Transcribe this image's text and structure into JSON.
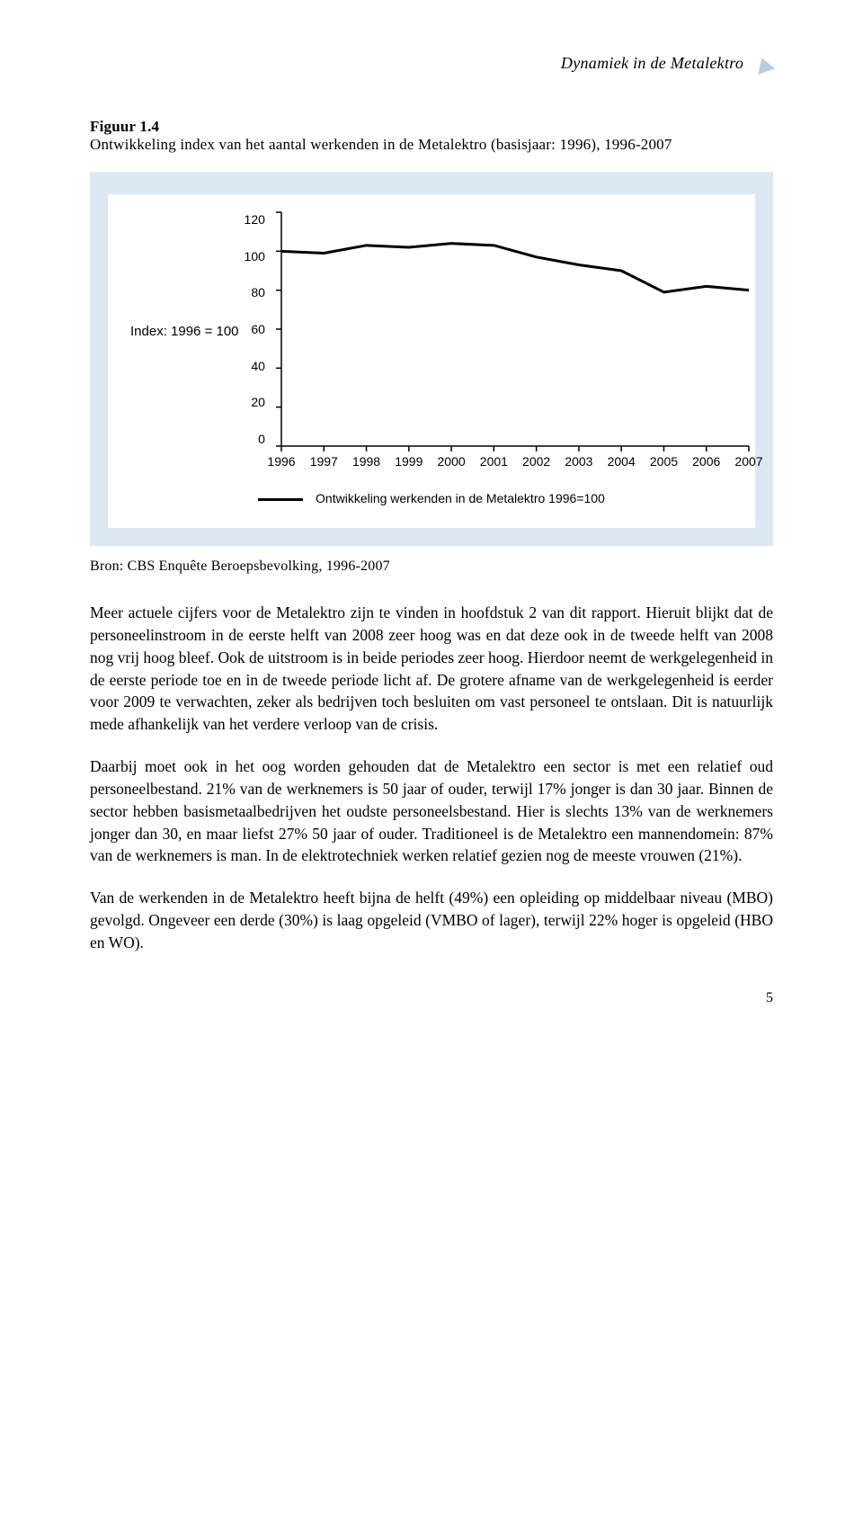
{
  "header": {
    "running_title": "Dynamiek in de Metalektro"
  },
  "figure": {
    "label": "Figuur 1.4",
    "caption": "Ontwikkeling index van het aantal werkenden in de Metalektro (basisjaar: 1996), 1996-2007"
  },
  "chart": {
    "type": "line",
    "background_color": "#dde8f2",
    "plot_background": "#ffffff",
    "line_color": "#000000",
    "line_width": 3,
    "axis_color": "#000000",
    "ylabel": "Index: 1996 = 100",
    "ylim": [
      0,
      120
    ],
    "ytick_step": 20,
    "yticks": [
      "120",
      "100",
      "80",
      "60",
      "40",
      "20",
      "0"
    ],
    "xticks": [
      "1996",
      "1997",
      "1998",
      "1999",
      "2000",
      "2001",
      "2002",
      "2003",
      "2004",
      "2005",
      "2006",
      "2007"
    ],
    "values": [
      100,
      99,
      103,
      102,
      104,
      103,
      97,
      93,
      90,
      79,
      82,
      80
    ],
    "legend_label": "Ontwikkeling werkenden in de Metalektro 1996=100",
    "label_fontsize": 14
  },
  "source": "Bron: CBS Enquête Beroepsbevolking, 1996-2007",
  "paragraphs": {
    "p1": "Meer actuele cijfers voor de Metalektro zijn te vinden in hoofdstuk 2 van dit rapport. Hieruit blijkt dat de personeelinstroom in de eerste helft van 2008 zeer hoog was en dat deze ook in de tweede helft van 2008 nog vrij hoog bleef. Ook de uitstroom is in beide periodes zeer hoog. Hierdoor neemt de werkgelegenheid in de eerste periode toe en in de tweede periode licht af. De grotere afname van de werkgelegenheid is eerder voor 2009 te verwachten, zeker als bedrijven toch besluiten om vast personeel te ontslaan. Dit is natuurlijk mede afhankelijk van het verdere verloop van de crisis.",
    "p2": "Daarbij moet ook in het oog worden gehouden dat de Metalektro een sector is met een relatief oud personeelbestand. 21% van de werknemers is 50 jaar of ouder, terwijl 17% jonger is dan 30 jaar. Binnen de sector hebben basismetaalbedrijven het oudste personeelsbestand. Hier is slechts 13% van de werknemers jonger dan 30, en maar liefst 27% 50 jaar of ouder. Traditioneel is de Metalektro een mannendomein: 87% van de werknemers is man. In de elektrotechniek werken relatief gezien nog de meeste vrouwen (21%).",
    "p3": "Van de werkenden in de Metalektro heeft bijna de helft (49%) een opleiding op middelbaar niveau (MBO) gevolgd. Ongeveer een derde (30%) is laag opgeleid (VMBO of lager), terwijl 22% hoger is opgeleid (HBO en WO)."
  },
  "page_number": "5"
}
